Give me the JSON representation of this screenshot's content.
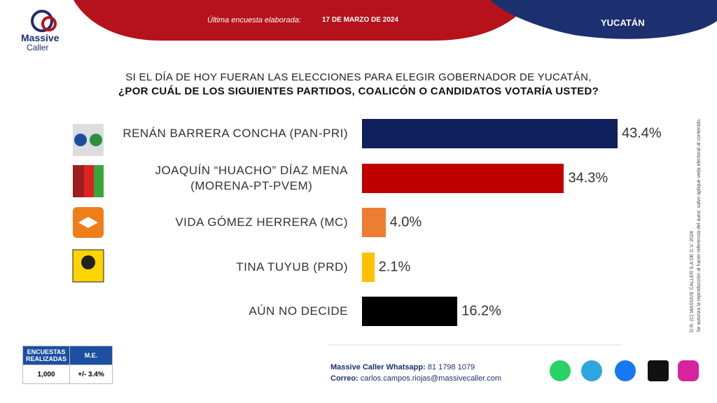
{
  "header": {
    "survey_label": "Última encuesta elaborada:",
    "survey_date": "17 DE MARZO DE 2024",
    "region": "YUCATÁN",
    "brand_line1": "Massive",
    "brand_line2": "Caller"
  },
  "chart_data": {
    "type": "bar",
    "orientation": "horizontal",
    "title": "SI EL DÍA DE HOY FUERAN LAS ELECCIONES PARA ELEGIR GOBERNADOR DE YUCATÁN,",
    "subtitle": "¿POR CUÁL DE LOS SIGUIENTES PARTIDOS, COALICÓN O CANDIDATOS VOTARÍA USTED?",
    "categories": [
      "RENÁN BARRERA CONCHA  (PAN-PRI)",
      "JOAQUÍN “HUACHO” DÍAZ MENA\n(MORENA-PT-PVEM)",
      "VIDA GÓMEZ HERRERA (MC)",
      "TINA TUYUB (PRD)",
      "AÚN NO DECIDE"
    ],
    "values": [
      43.4,
      34.3,
      4.0,
      2.1,
      16.2
    ],
    "value_labels": [
      "43.4%",
      "34.3%",
      "4.0%",
      "2.1%",
      "16.2%"
    ],
    "colors": [
      "#0f1f5c",
      "#c00000",
      "#ed7d31",
      "#ffc000",
      "#000000"
    ]
  },
  "sample_table": {
    "headers": [
      "ENCUESTAS REALIZADAS",
      "M.E."
    ],
    "row": [
      "1,000",
      "+/- 3.4%"
    ]
  },
  "footer": {
    "whatsapp_label": "Massive Caller Whatsapp:",
    "whatsapp": "81 1798 1079",
    "email_label": "Correo:",
    "email": "carlos.campos.riojas@massivecaller.com"
  },
  "side_note": {
    "line1": "D.R. (C) MASSIVE CALLER S.A DE C.V. 2024",
    "line2": "Se autoriza la reproducción al hacer referencia del autor, salvo aplique veda electoral al contenido."
  }
}
